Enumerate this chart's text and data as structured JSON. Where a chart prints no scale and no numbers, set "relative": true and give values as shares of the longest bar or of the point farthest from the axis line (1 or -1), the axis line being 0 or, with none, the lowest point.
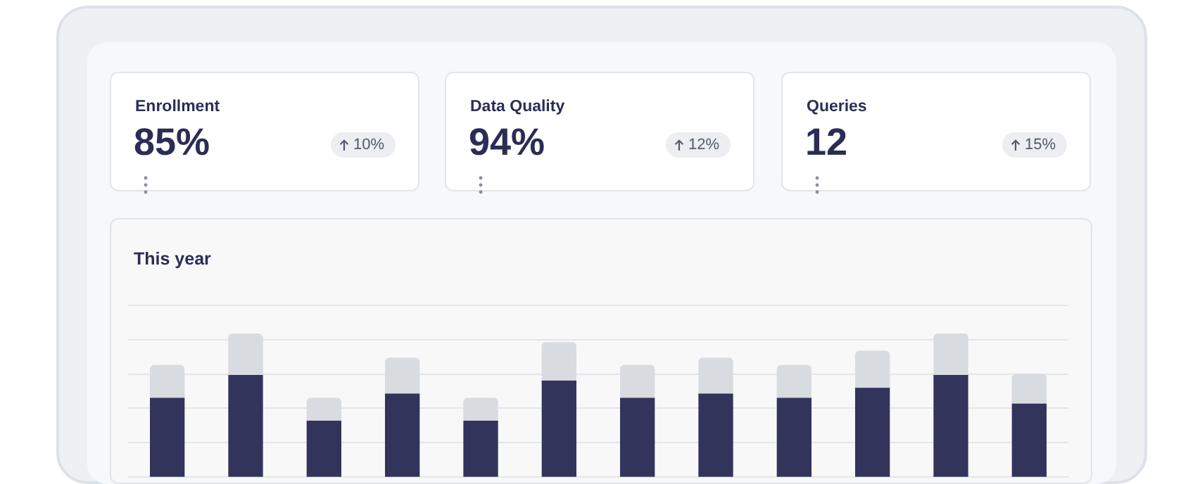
{
  "chart_data": [
    {
      "type": "other",
      "title": "Enrollment",
      "annotations": [
        "85%",
        "10%"
      ]
    },
    {
      "type": "other",
      "title": "Data Quality",
      "annotations": [
        "94%",
        "12%"
      ]
    },
    {
      "type": "other",
      "title": "Queries",
      "annotations": [
        "12",
        "15%"
      ]
    },
    {
      "type": "bar",
      "title": "This year",
      "categories": [
        null,
        null,
        null,
        null,
        null,
        null,
        null,
        null,
        null,
        null,
        null,
        null
      ],
      "stacked": true,
      "relative": true,
      "grid": "y",
      "series": [
        {
          "color": "#32345c",
          "values": [
            0.55,
            0.71,
            0.39,
            0.58,
            0.39,
            0.67,
            0.55,
            0.58,
            0.55,
            0.62,
            0.71,
            0.51
          ]
        },
        {
          "color": "#d8dbdf",
          "values": [
            0.23,
            0.29,
            0.16,
            0.25,
            0.16,
            0.27,
            0.23,
            0.25,
            0.23,
            0.26,
            0.29,
            0.21
          ]
        }
      ]
    }
  ]
}
